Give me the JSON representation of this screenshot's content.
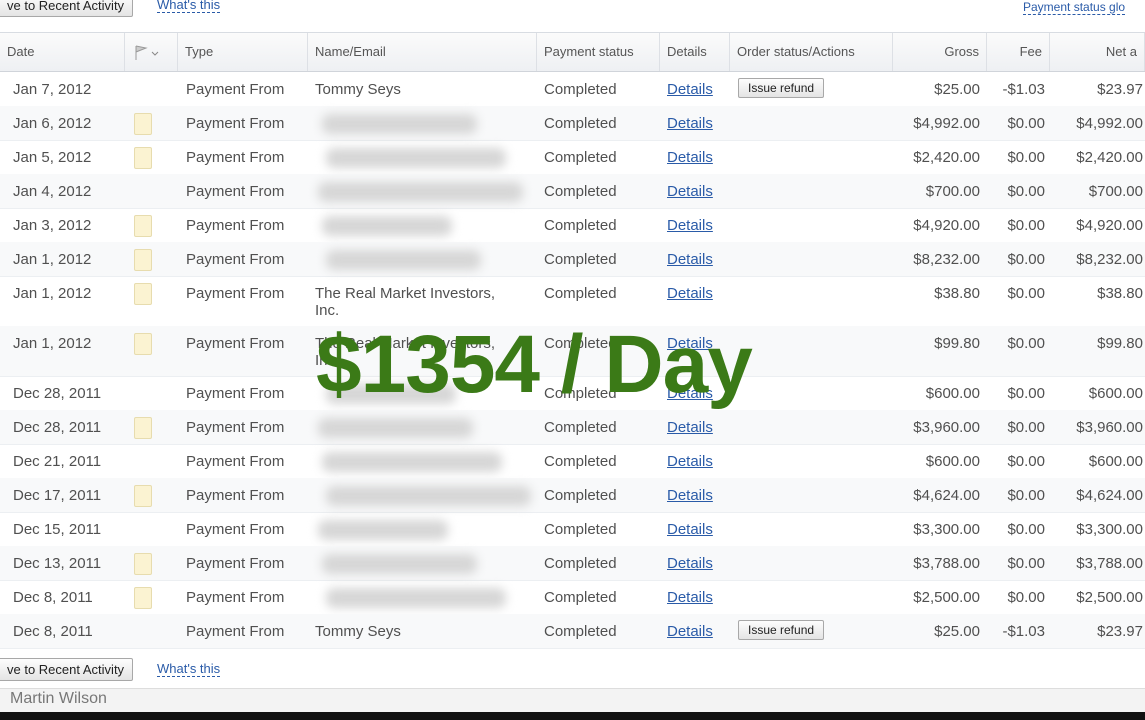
{
  "top_bar": {
    "move_button": "ve to Recent Activity",
    "whats_this": "What's this",
    "payment_status_link": "Payment status glo"
  },
  "table": {
    "columns": [
      "Date",
      "Type",
      "Name/Email",
      "Payment status",
      "Details",
      "Order status/Actions",
      "Gross",
      "Fee",
      "Net a"
    ],
    "rows": [
      {
        "date": "Jan 7, 2012",
        "type": "Payment From",
        "name": "Tommy Seys",
        "status": "Completed",
        "details": "Details",
        "action": "Issue refund",
        "gross": "$25.00",
        "fee": "-$1.03",
        "net": "$23.97",
        "note_icon": false
      },
      {
        "date": "Jan 6, 2012",
        "type": "Payment From",
        "status": "Completed",
        "details": "Details",
        "gross": "$4,992.00",
        "fee": "$0.00",
        "net": "$4,992.00",
        "note_icon": true
      },
      {
        "date": "Jan 5, 2012",
        "type": "Payment From",
        "status": "Completed",
        "details": "Details",
        "gross": "$2,420.00",
        "fee": "$0.00",
        "net": "$2,420.00",
        "note_icon": true
      },
      {
        "date": "Jan 4, 2012",
        "type": "Payment From",
        "status": "Completed",
        "details": "Details",
        "gross": "$700.00",
        "fee": "$0.00",
        "net": "$700.00",
        "note_icon": false
      },
      {
        "date": "Jan 3, 2012",
        "type": "Payment From",
        "status": "Completed",
        "details": "Details",
        "gross": "$4,920.00",
        "fee": "$0.00",
        "net": "$4,920.00",
        "note_icon": true
      },
      {
        "date": "Jan 1, 2012",
        "type": "Payment From",
        "status": "Completed",
        "details": "Details",
        "gross": "$8,232.00",
        "fee": "$0.00",
        "net": "$8,232.00",
        "note_icon": true
      },
      {
        "date": "Jan 1, 2012",
        "type": "Payment From",
        "name": "The Real Market Investors, Inc.",
        "status": "Completed",
        "details": "Details",
        "gross": "$38.80",
        "fee": "$0.00",
        "net": "$38.80",
        "note_icon": true
      },
      {
        "date": "Jan 1, 2012",
        "type": "Payment From",
        "name": "The Real Market Investors, Inc.",
        "status": "Completed",
        "details": "Details",
        "gross": "$99.80",
        "fee": "$0.00",
        "net": "$99.80",
        "note_icon": true
      },
      {
        "date": "Dec 28, 2011",
        "type": "Payment From",
        "status": "Completed",
        "details": "Details",
        "gross": "$600.00",
        "fee": "$0.00",
        "net": "$600.00",
        "note_icon": false
      },
      {
        "date": "Dec 28, 2011",
        "type": "Payment From",
        "status": "Completed",
        "details": "Details",
        "gross": "$3,960.00",
        "fee": "$0.00",
        "net": "$3,960.00",
        "note_icon": true
      },
      {
        "date": "Dec 21, 2011",
        "type": "Payment From",
        "status": "Completed",
        "details": "Details",
        "gross": "$600.00",
        "fee": "$0.00",
        "net": "$600.00",
        "note_icon": false
      },
      {
        "date": "Dec 17, 2011",
        "type": "Payment From",
        "status": "Completed",
        "details": "Details",
        "gross": "$4,624.00",
        "fee": "$0.00",
        "net": "$4,624.00",
        "note_icon": true
      },
      {
        "date": "Dec 15, 2011",
        "type": "Payment From",
        "status": "Completed",
        "details": "Details",
        "gross": "$3,300.00",
        "fee": "$0.00",
        "net": "$3,300.00",
        "note_icon": false
      },
      {
        "date": "Dec 13, 2011",
        "type": "Payment From",
        "status": "Completed",
        "details": "Details",
        "gross": "$3,788.00",
        "fee": "$0.00",
        "net": "$3,788.00",
        "note_icon": true
      },
      {
        "date": "Dec 8, 2011",
        "type": "Payment From",
        "status": "Completed",
        "details": "Details",
        "gross": "$2,500.00",
        "fee": "$0.00",
        "net": "$2,500.00",
        "note_icon": true
      },
      {
        "date": "Dec 8, 2011",
        "type": "Payment From",
        "name": "Tommy Seys",
        "status": "Completed",
        "details": "Details",
        "action": "Issue refund",
        "gross": "$25.00",
        "fee": "-$1.03",
        "net": "$23.97",
        "note_icon": false
      }
    ]
  },
  "overlay": "$1354 / Day",
  "bottom_bar": {
    "move_button": "ve to Recent Activity",
    "whats_this": "What's this"
  },
  "footer": "Martin Wilson"
}
